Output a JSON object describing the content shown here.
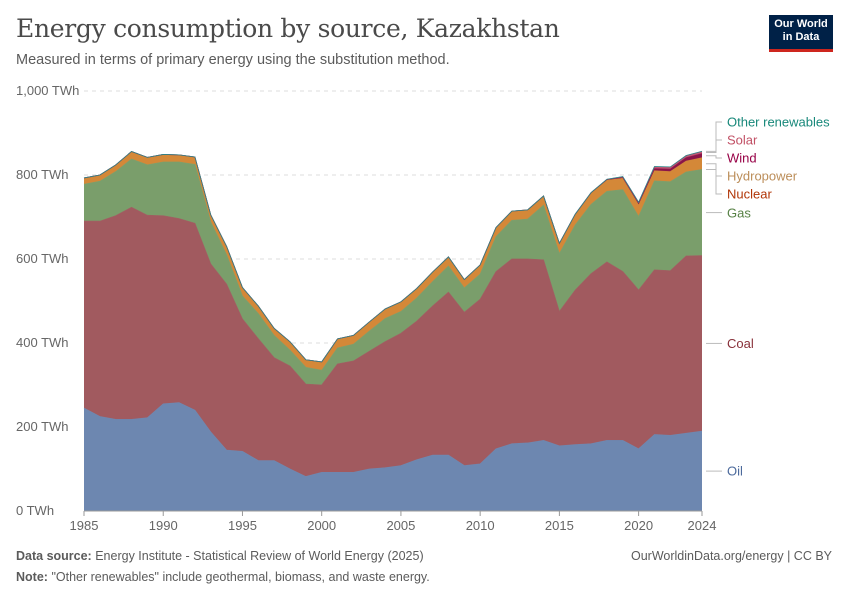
{
  "header": {
    "title": "Energy consumption by source, Kazakhstan",
    "subtitle": "Measured in terms of primary energy using the substitution method.",
    "logo_line1": "Our World",
    "logo_line2": "in Data"
  },
  "footer": {
    "source_label": "Data source:",
    "source_text": "Energy Institute - Statistical Review of World Energy (2025)",
    "note_label": "Note:",
    "note_text": "\"Other renewables\" include geothermal, biomass, and waste energy.",
    "credit": "OurWorldinData.org/energy | CC BY"
  },
  "chart_data": {
    "type": "area",
    "stacked": true,
    "title": "Energy consumption by source, Kazakhstan",
    "ylabel": "",
    "xlabel": "",
    "ylim": [
      0,
      1000
    ],
    "xlim": [
      1985,
      2024
    ],
    "y_ticks": [
      0,
      200,
      400,
      600,
      800,
      1000
    ],
    "y_tick_labels": [
      "0 TWh",
      "200 TWh",
      "400 TWh",
      "600 TWh",
      "800 TWh",
      "1,000 TWh"
    ],
    "x_ticks": [
      1985,
      1990,
      1995,
      2000,
      2005,
      2010,
      2015,
      2020,
      2024
    ],
    "x_tick_labels": [
      "1985",
      "1990",
      "1995",
      "2000",
      "2005",
      "2010",
      "2015",
      "2020",
      "2024"
    ],
    "x": [
      1985,
      1986,
      1987,
      1988,
      1989,
      1990,
      1991,
      1992,
      1993,
      1994,
      1995,
      1996,
      1997,
      1998,
      1999,
      2000,
      2001,
      2002,
      2003,
      2004,
      2005,
      2006,
      2007,
      2008,
      2009,
      2010,
      2011,
      2012,
      2013,
      2014,
      2015,
      2016,
      2017,
      2018,
      2019,
      2020,
      2021,
      2022,
      2023,
      2024
    ],
    "series": [
      {
        "name": "Oil",
        "color": "#6D87B0",
        "label_color": "#4C6A9C",
        "values": [
          245,
          225,
          218,
          218,
          222,
          255,
          258,
          240,
          188,
          145,
          142,
          120,
          120,
          100,
          82,
          92,
          92,
          92,
          100,
          103,
          108,
          122,
          133,
          133,
          108,
          112,
          148,
          160,
          162,
          168,
          155,
          158,
          160,
          168,
          168,
          148,
          182,
          180,
          185,
          190
        ]
      },
      {
        "name": "Coal",
        "color": "#A15A5F",
        "label_color": "#883039",
        "values": [
          445,
          465,
          485,
          505,
          482,
          448,
          438,
          445,
          400,
          395,
          315,
          290,
          245,
          245,
          220,
          208,
          258,
          265,
          280,
          300,
          315,
          330,
          355,
          388,
          365,
          392,
          422,
          440,
          438,
          430,
          320,
          368,
          405,
          425,
          402,
          378,
          392,
          392,
          422,
          418
        ]
      },
      {
        "name": "Gas",
        "color": "#7A9E6B",
        "label_color": "#578145",
        "values": [
          88,
          95,
          105,
          115,
          120,
          128,
          135,
          140,
          100,
          70,
          55,
          60,
          53,
          38,
          40,
          35,
          38,
          40,
          48,
          55,
          52,
          55,
          58,
          62,
          58,
          60,
          83,
          92,
          95,
          130,
          138,
          155,
          165,
          168,
          195,
          175,
          212,
          212,
          200,
          205
        ]
      },
      {
        "name": "Nuclear",
        "color": "#B0491C",
        "label_color": "#B13507",
        "values": [
          0,
          0,
          0,
          0,
          0,
          0,
          0,
          0,
          0,
          0,
          0,
          0,
          0,
          0,
          0,
          0,
          0,
          0,
          0,
          0,
          0,
          0,
          0,
          0,
          0,
          0,
          0,
          0,
          0,
          0,
          0,
          0,
          0,
          0,
          0,
          0,
          0,
          0,
          0,
          0
        ]
      },
      {
        "name": "Hydropower",
        "color": "#D48838",
        "label_color": "#BC8E5A",
        "values": [
          15,
          15,
          16,
          18,
          18,
          18,
          17,
          18,
          17,
          20,
          20,
          18,
          17,
          20,
          18,
          20,
          22,
          21,
          22,
          23,
          23,
          23,
          23,
          22,
          20,
          22,
          22,
          22,
          22,
          22,
          24,
          25,
          27,
          27,
          27,
          28,
          24,
          24,
          26,
          28
        ]
      },
      {
        "name": "Wind",
        "color": "#8A1449",
        "label_color": "#970046",
        "values": [
          0,
          0,
          0,
          0,
          0,
          0,
          0,
          0,
          0,
          0,
          0,
          0,
          0,
          0,
          0,
          0,
          0,
          0,
          0,
          0,
          0,
          0,
          0,
          0,
          0,
          0,
          0,
          0,
          0,
          0,
          0.3,
          0.6,
          0.8,
          1,
          2,
          3,
          5,
          6,
          8,
          10
        ]
      },
      {
        "name": "Solar",
        "color": "#C15874",
        "label_color": "#C15065",
        "values": [
          0,
          0,
          0,
          0,
          0,
          0,
          0,
          0,
          0,
          0,
          0,
          0,
          0,
          0,
          0,
          0,
          0,
          0,
          0,
          0,
          0,
          0,
          0,
          0,
          0,
          0,
          0,
          0,
          0,
          0,
          0.1,
          0.3,
          0.5,
          1,
          2,
          3,
          5,
          5,
          5,
          5
        ]
      },
      {
        "name": "Other renewables",
        "color": "#1B8A8A",
        "label_color": "#18887A",
        "values": [
          0,
          0,
          0,
          0,
          0,
          0,
          0,
          0,
          0,
          0,
          0,
          0,
          0,
          0,
          0,
          0,
          0,
          0,
          0,
          0,
          0,
          0,
          0,
          0,
          0,
          0,
          0,
          0,
          0,
          0,
          0,
          0,
          0,
          0,
          0.2,
          0.2,
          0.3,
          0.3,
          0.4,
          0.5
        ]
      }
    ],
    "legend_placement": "right"
  }
}
